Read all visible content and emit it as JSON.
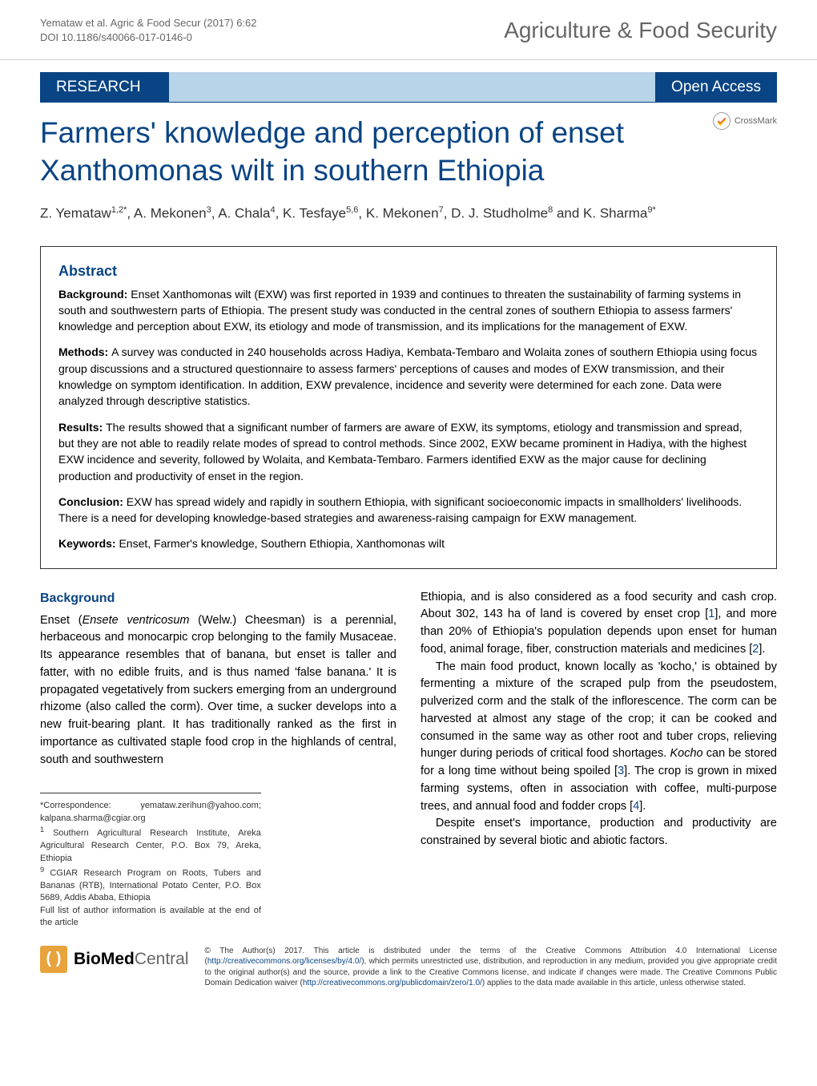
{
  "header": {
    "citation_line1": "Yemataw et al. Agric & Food Secur  (2017) 6:62",
    "citation_line2": "DOI 10.1186/s40066-017-0146-0",
    "journal_name": "Agriculture & Food Security"
  },
  "banner": {
    "research_label": "RESEARCH",
    "open_access_label": "Open Access",
    "crossmark_label": "CrossMark"
  },
  "title": "Farmers' knowledge and perception of enset Xanthomonas wilt in southern Ethiopia",
  "authors": "Z. Yemataw<sup>1,2*</sup>, A. Mekonen<sup>3</sup>, A. Chala<sup>4</sup>, K. Tesfaye<sup>5,6</sup>, K. Mekonen<sup>7</sup>, D. J. Studholme<sup>8</sup> and K. Sharma<sup>9*</sup>",
  "abstract": {
    "heading": "Abstract",
    "background": {
      "label": "Background: ",
      "text": "Enset Xanthomonas wilt (EXW) was first reported in 1939 and continues to threaten the sustainability of farming systems in south and southwestern parts of Ethiopia. The present study was conducted in the central zones of southern Ethiopia to assess farmers' knowledge and perception about EXW, its etiology and mode of transmission, and its implications for the management of EXW."
    },
    "methods": {
      "label": "Methods: ",
      "text": "A survey was conducted in 240 households across Hadiya, Kembata-Tembaro and Wolaita zones of southern Ethiopia using focus group discussions and a structured questionnaire to assess farmers' perceptions of causes and modes of EXW transmission, and their knowledge on symptom identification. In addition, EXW prevalence, incidence and severity were determined for each zone. Data were analyzed through descriptive statistics."
    },
    "results": {
      "label": "Results: ",
      "text": "The results showed that a significant number of farmers are aware of EXW, its symptoms, etiology and transmission and spread, but they are not able to readily relate modes of spread to control methods. Since 2002, EXW became prominent in Hadiya, with the highest EXW incidence and severity, followed by Wolaita, and Kembata-Tembaro. Farmers identified EXW as the major cause for declining production and productivity of enset in the region."
    },
    "conclusion": {
      "label": "Conclusion: ",
      "text": "EXW has spread widely and rapidly in southern Ethiopia, with significant socioeconomic impacts in smallholders' livelihoods. There is a need for developing knowledge-based strategies and awareness-raising campaign for EXW management."
    },
    "keywords": {
      "label": "Keywords: ",
      "text": "Enset, Farmer's knowledge, Southern Ethiopia, Xanthomonas wilt"
    }
  },
  "body": {
    "background_heading": "Background",
    "col1_p1": "Enset (<span class=\"italic\">Ensete ventricosum</span> (Welw.) Cheesman) is a perennial, herbaceous and monocarpic crop belonging to the family Musaceae. Its appearance resembles that of banana, but enset is taller and fatter, with no edible fruits, and is thus named 'false banana.' It is propagated vegetatively from suckers emerging from an underground rhizome (also called the corm). Over time, a sucker develops into a new fruit-bearing plant. It has traditionally ranked as the first in importance as cultivated staple food crop in the highlands of central, south and southwestern",
    "col2_p1": "Ethiopia, and is also considered as a food security and cash crop. About 302, 143 ha of land is covered by enset crop [<span class=\"ref\">1</span>], and more than 20% of Ethiopia's population depends upon enset for human food, animal forage, fiber, construction materials and medicines [<span class=\"ref\">2</span>].",
    "col2_p2": "The main food product, known locally as 'kocho,' is obtained by fermenting a mixture of the scraped pulp from the pseudostem, pulverized corm and the stalk of the inflorescence. The corm can be harvested at almost any stage of the crop; it can be cooked and consumed in the same way as other root and tuber crops, relieving hunger during periods of critical food shortages. <span class=\"italic\">Kocho</span> can be stored for a long time without being spoiled [<span class=\"ref\">3</span>]. The crop is grown in mixed farming systems, often in association with coffee, multi-purpose trees, and annual food and fodder crops [<span class=\"ref\">4</span>].",
    "col2_p3": "Despite enset's importance, production and productivity are constrained by several biotic and abiotic factors."
  },
  "footnotes": {
    "correspondence": "*Correspondence: yemataw.zerihun@yahoo.com; kalpana.sharma@cgiar.org",
    "affil1": "<sup>1</sup> Southern Agricultural Research Institute, Areka Agricultural Research Center, P.O. Box 79, Areka, Ethiopia",
    "affil9": "<sup>9</sup> CGIAR Research Program on Roots, Tubers and Bananas (RTB), International Potato Center, P.O. Box 5689, Addis Ababa, Ethiopia",
    "full_list": "Full list of author information is available at the end of the article"
  },
  "footer": {
    "logo_bio": "Bio",
    "logo_med": "Med",
    "logo_central": " Central",
    "license": "© The Author(s) 2017. This article is distributed under the terms of the Creative Commons Attribution 4.0 International License (<a>http://creativecommons.org/licenses/by/4.0/</a>), which permits unrestricted use, distribution, and reproduction in any medium, provided you give appropriate credit to the original author(s) and the source, provide a link to the Creative Commons license, and indicate if changes were made. The Creative Commons Public Domain Dedication waiver (<a>http://creativecommons.org/publicdomain/zero/1.0/</a>) applies to the data made available in this article, unless otherwise stated."
  },
  "colors": {
    "brand_blue": "#094484",
    "light_blue": "#b8d4e8",
    "biomed_orange": "#e8a33d",
    "text_gray": "#666"
  }
}
